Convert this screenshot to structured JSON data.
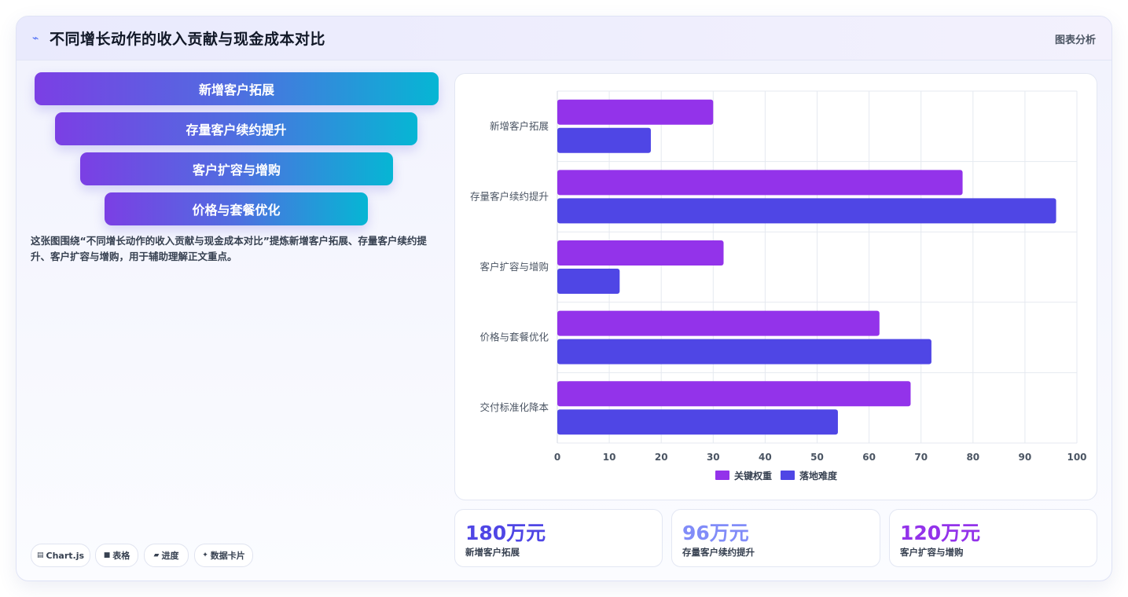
{
  "header": {
    "icon": "wave-icon",
    "title": "不同增长动作的收入贡献与现金成本对比",
    "tag": "图表分析"
  },
  "funnel": {
    "items": [
      {
        "label": "新增客户拓展"
      },
      {
        "label": "存量客户续约提升"
      },
      {
        "label": "客户扩容与增购"
      },
      {
        "label": "价格与套餐优化"
      }
    ]
  },
  "description": "这张图围绕“不同增长动作的收入贡献与现金成本对比”提炼新增客户拓展、存量客户续约提升、客户扩容与增购，用于辅助理解正文重点。",
  "chips": [
    {
      "icon": "chart-icon",
      "label": "Chart.js"
    },
    {
      "icon": "table-icon",
      "label": "表格"
    },
    {
      "icon": "progress-icon",
      "label": "进度"
    },
    {
      "icon": "sparkle-icon",
      "label": "数据卡片"
    }
  ],
  "stats": [
    {
      "value": "180万元",
      "label": "新增客户拓展",
      "color": "#4f46e5"
    },
    {
      "value": "96万元",
      "label": "存量客户续约提升",
      "color": "#818cf8"
    },
    {
      "value": "120万元",
      "label": "客户扩容与增购",
      "color": "#9333ea"
    }
  ],
  "chart_data": {
    "type": "bar",
    "orientation": "horizontal",
    "categories": [
      "新增客户拓展",
      "存量客户续约提升",
      "客户扩容与增购",
      "价格与套餐优化",
      "交付标准化降本"
    ],
    "series": [
      {
        "name": "关键权重",
        "values": [
          30,
          78,
          32,
          62,
          68
        ],
        "color": "#9333ea"
      },
      {
        "name": "落地难度",
        "values": [
          18,
          96,
          12,
          72,
          54
        ],
        "color": "#4f46e5"
      }
    ],
    "xlim": [
      0,
      100
    ],
    "xticks": [
      "0",
      "10",
      "20",
      "30",
      "40",
      "50",
      "60",
      "70",
      "80",
      "90",
      "100"
    ],
    "grid": true,
    "legend": "bottom"
  }
}
